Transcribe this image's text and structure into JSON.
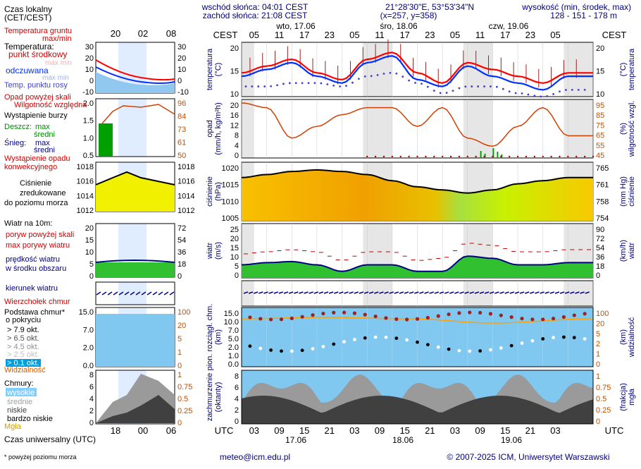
{
  "header": {
    "sunrise": "wschód słońca: 04:01 CEST",
    "sunset": "zachód słońca: 21:08 CEST",
    "coords": "21°28'30\"E, 53°53'34\"N",
    "grid": "(x=257, y=358)",
    "altitude_label": "wysokość (min, środek, max)",
    "altitude_values": "128 - 151 - 178 m"
  },
  "top_axis": {
    "tz": "CEST",
    "days": [
      "wto, 17.06",
      "śro, 18.06",
      "czw, 19.06"
    ],
    "hours": [
      "05",
      "11",
      "17",
      "23",
      "05",
      "11",
      "17",
      "23",
      "05",
      "11",
      "17",
      "23",
      "05"
    ]
  },
  "bottom_axis": {
    "tz": "UTC",
    "hours": [
      "03",
      "09",
      "15",
      "21",
      "03",
      "09",
      "15",
      "21",
      "03",
      "09",
      "15",
      "21",
      "03"
    ],
    "dates": [
      "17.06",
      "18.06",
      "19.06"
    ]
  },
  "legend": {
    "time_local": "Czas lokalny",
    "time_local_sub": "(CET/CEST)",
    "time_axis_top": [
      "20",
      "02",
      "08"
    ],
    "time_axis_bottom": [
      "18",
      "00",
      "06"
    ],
    "temp_ground": "Temperatura gruntu",
    "temp_ground_sub": "max/min",
    "temperature": "Temperatura:",
    "temp_mid": "punkt środkowy",
    "temp_maxmin": "max min",
    "temp_felt": "odczuwana",
    "temp_felt_sub": "max min",
    "dew": "Temp. punktu rosy",
    "precip_above": "Opad powyżej skali",
    "humidity": "Wilgotność względna",
    "storm": "Wystąpienie burzy",
    "rain": "Deszcz:",
    "rain_max": "max",
    "rain_mid": "średni",
    "snow": "Śnieg:",
    "snow_max": "max",
    "snow_mid": "średni",
    "conv": "Wystąpienie opadu",
    "conv2": "konwekcyjnego",
    "pressure1": "Ciśnienie",
    "pressure2": "zredukowane",
    "pressure3": "do poziomu morza",
    "wind10": "Wiatr na 10m:",
    "gust_above": "poryw powyżej skali",
    "gust_max": "max porywy wiatru",
    "wind_speed": "prędkość wiatru",
    "wind_mid": "w środku obszaru",
    "wind_dir": "kierunek wiatru",
    "cloud_top": "Wierzchołek chmur",
    "cloud_base": "Podstawa chmur*",
    "cloud_base2": "o pokryciu",
    "okt79": "> 7.9 okt.",
    "okt65": "> 6.5 okt.",
    "okt45": "> 4.5 okt.",
    "okt25": "> 2.5 okt.",
    "okt01": "> 0.1 okt.",
    "visibility": "Widzialność",
    "clouds": "Chmury:",
    "cl_high": "wysokie",
    "cl_mid": "średnie",
    "cl_low": "niskie",
    "cl_vlow": "bardzo niskie",
    "fog": "Mgła",
    "time_utc": "Czas uniwersalny (UTC)",
    "footnote": "* powyżej poziomu morza"
  },
  "panels": {
    "temp": {
      "left": "temperatura",
      "left2": "(°C)",
      "right": "temperatura",
      "right2": "(°C)",
      "ticks_l": [
        "20",
        "15",
        "10"
      ],
      "ticks_r": [
        "20",
        "15",
        "10"
      ]
    },
    "precip": {
      "left": "opad",
      "left2": "(mm/h, kg/m²h)",
      "right": "wilgotność wzgl.",
      "right2": "(%)",
      "ticks_l": [
        "20",
        "16",
        "12",
        "8",
        "4",
        "0"
      ],
      "ticks_r": [
        "95",
        "85",
        "75",
        "65",
        "55",
        "45"
      ]
    },
    "pressure": {
      "left": "ciśnienie",
      "left2": "(hPa)",
      "right": "ciśnienie",
      "right2": "(mm Hg)",
      "ticks_l": [
        "1020",
        "1015",
        "1010",
        "1005"
      ],
      "ticks_r": [
        "765",
        "761",
        "758",
        "754"
      ]
    },
    "wind": {
      "left": "wiatr",
      "left2": "(m/s)",
      "right": "wiatr",
      "right2": "(km/h)",
      "ticks_l": [
        "25",
        "20",
        "15",
        "10",
        "5",
        "0"
      ],
      "ticks_r": [
        "90",
        "72",
        "54",
        "36",
        "18",
        "0"
      ]
    },
    "cloud": {
      "left": "pion. rozciągł. chm.",
      "left2": "(km)",
      "right": "widzialność",
      "right2": "(km)",
      "ticks_l": [
        "15.0",
        "10.0",
        "7.0",
        "5.0",
        "2.0",
        "1.0",
        "0.0"
      ],
      "ticks_r": [
        "100",
        "20",
        "5",
        "2",
        "1",
        "0"
      ]
    },
    "cover": {
      "left": "zachmurzenie",
      "left2": "(oktanty)",
      "right": "mgła",
      "right2": "(frakcja)",
      "ticks_l": [
        "8",
        "6",
        "4",
        "2",
        "0"
      ],
      "ticks_r": [
        "1",
        "0.75",
        "0.5",
        "0.25",
        "0"
      ]
    }
  },
  "legend_ticks": {
    "temp_l": [
      "30",
      "20",
      "10",
      "0",
      "-10"
    ],
    "temp_r": [
      "30",
      "20",
      "10",
      "0",
      "-10"
    ],
    "precip_l": [
      "2.0",
      "1.5",
      "1.0",
      "0.5"
    ],
    "precip_r": [
      "96",
      "84",
      "73",
      "61",
      "50"
    ],
    "pres_l": [
      "1018",
      "1016",
      "1014",
      "1012"
    ],
    "pres_r": [
      "1018",
      "1016",
      "1014",
      "1012"
    ],
    "wind_l": [
      "20",
      "15",
      "10",
      "5",
      "0"
    ],
    "wind_r": [
      "72",
      "54",
      "36",
      "18",
      "0"
    ],
    "cloud_l": [
      "15.0",
      "7.0",
      "2.0",
      "0.0"
    ],
    "cloud_r": [
      "100",
      "20",
      "5",
      "1",
      "0"
    ],
    "cover_l": [
      "8",
      "6",
      "4",
      "2",
      "0"
    ],
    "cover_r": [
      "1",
      "0.75",
      "0.5",
      "0.25",
      "0"
    ]
  },
  "footer": {
    "email": "meteo@icm.edu.pl",
    "copyright": "© 2007-2025 ICM, Uniwersytet Warszawski"
  },
  "colors": {
    "temp": "#ff0000",
    "felt": "#0030ff",
    "dew": "#4040d0",
    "humidity": "#d04000",
    "pressure": "#000000",
    "wind": "#000080",
    "gust": "#c00000",
    "visibility": "#ffa000"
  },
  "chart_data": [
    {
      "type": "line",
      "title": "",
      "ylabel": "temperatura (°C)",
      "x_hours": [
        0,
        6,
        12,
        18,
        24,
        30,
        36,
        42,
        48,
        54,
        60,
        66,
        72,
        78
      ],
      "series": [
        {
          "name": "",
          "values": [
            14,
            16,
            18,
            14,
            12,
            18,
            20,
            14,
            11,
            17,
            15,
            13,
            11,
            14
          ]
        },
        {
          "name": "",
          "values": [
            13,
            15,
            17,
            13,
            11,
            17,
            19,
            12,
            10,
            16,
            13,
            11,
            9,
            13
          ]
        },
        {
          "name": "",
          "values": [
            10,
            10,
            11,
            11,
            10,
            13,
            14,
            11,
            8,
            10,
            10,
            8,
            7,
            9
          ]
        }
      ],
      "ylim": [
        7,
        23
      ]
    },
    {
      "type": "line",
      "title": "",
      "ylabel": "opad (mm/h, kg/m²h)",
      "x_hours": [
        0,
        6,
        12,
        18,
        24,
        30,
        36,
        42,
        48,
        54,
        60,
        66,
        72,
        78
      ],
      "series": [
        {
          "name": "",
          "values": [
            92,
            88,
            62,
            72,
            82,
            88,
            88,
            72,
            88,
            62,
            55,
            72,
            88,
            64
          ]
        }
      ],
      "ylim": [
        45,
        95
      ]
    },
    {
      "type": "area",
      "title": "",
      "ylabel": "ciśnienie (hPa)",
      "x_hours": [
        0,
        6,
        12,
        18,
        24,
        30,
        36,
        42,
        48,
        54,
        60,
        66,
        72,
        78
      ],
      "series": [
        {
          "name": "",
          "values": [
            1017,
            1018,
            1019,
            1019.5,
            1019,
            1018,
            1016,
            1014,
            1013,
            1012,
            1013,
            1015,
            1016,
            1017
          ]
        }
      ],
      "ylim": [
        1003,
        1022
      ]
    },
    {
      "type": "area",
      "title": "",
      "ylabel": "wiatr (m/s)",
      "x_hours": [
        0,
        6,
        12,
        18,
        24,
        30,
        36,
        42,
        48,
        54,
        60,
        66,
        72,
        78
      ],
      "series": [
        {
          "name": "",
          "values": [
            6,
            7,
            7.5,
            6,
            3,
            6,
            6,
            3,
            3,
            10,
            9,
            6,
            6,
            7
          ]
        },
        {
          "name": "",
          "values": [
            11,
            12,
            13,
            12,
            8,
            12,
            12,
            8,
            9,
            16,
            15,
            12,
            12,
            13
          ]
        }
      ],
      "ylim": [
        0,
        25
      ]
    }
  ]
}
